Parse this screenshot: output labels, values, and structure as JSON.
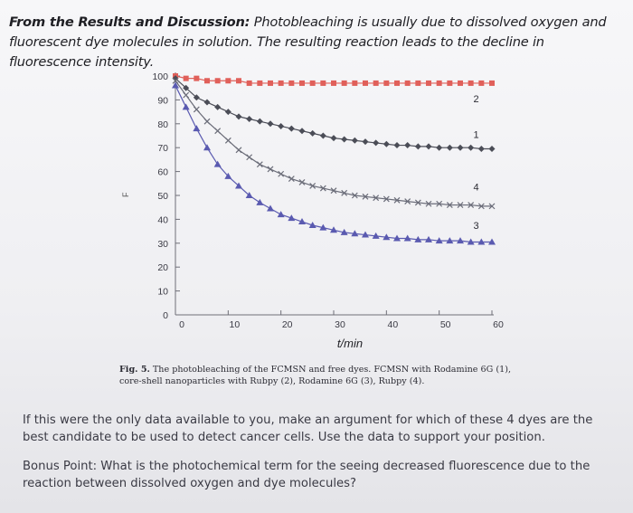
{
  "intro": {
    "lead": "From the Results and Discussion:",
    "text": " Photobleaching is usually due to dissolved oxygen and fluorescent dye molecules in solution. The resulting reaction leads to the decline in fluorescence intensity."
  },
  "chart_data": {
    "type": "line",
    "xlabel": "t/min",
    "ylabel": "",
    "xlim": [
      0,
      60
    ],
    "ylim": [
      0,
      100
    ],
    "x_ticks": [
      "0",
      "10",
      "20",
      "30",
      "40",
      "50",
      "60"
    ],
    "y_ticks": [
      "0",
      "10",
      "20",
      "30",
      "40",
      "50",
      "60",
      "70",
      "80",
      "90",
      "100"
    ],
    "grid": false,
    "series": [
      {
        "name": "2",
        "marker": "square",
        "color": "#e0605a",
        "x": [
          0,
          2,
          4,
          6,
          8,
          10,
          12,
          14,
          16,
          18,
          20,
          22,
          24,
          26,
          28,
          30,
          32,
          34,
          36,
          38,
          40,
          42,
          44,
          46,
          48,
          50,
          52,
          54,
          56,
          58,
          60
        ],
        "y": [
          100,
          99,
          99,
          98,
          98,
          98,
          98,
          97,
          97,
          97,
          97,
          97,
          97,
          97,
          97,
          97,
          97,
          97,
          97,
          97,
          97,
          97,
          97,
          97,
          97,
          97,
          97,
          97,
          97,
          97,
          97
        ]
      },
      {
        "name": "1",
        "marker": "diamond",
        "color": "#4b4d57",
        "x": [
          0,
          2,
          4,
          6,
          8,
          10,
          12,
          14,
          16,
          18,
          20,
          22,
          24,
          26,
          28,
          30,
          32,
          34,
          36,
          38,
          40,
          42,
          44,
          46,
          48,
          50,
          52,
          54,
          56,
          58,
          60
        ],
        "y": [
          99,
          95,
          91,
          89,
          87,
          85,
          83,
          82,
          81,
          80,
          79,
          78,
          77,
          76,
          75,
          74,
          73.5,
          73,
          72.5,
          72,
          71.5,
          71,
          71,
          70.5,
          70.5,
          70,
          70,
          70,
          70,
          69.5,
          69.5
        ]
      },
      {
        "name": "4",
        "marker": "x",
        "color": "#6a6c78",
        "x": [
          0,
          2,
          4,
          6,
          8,
          10,
          12,
          14,
          16,
          18,
          20,
          22,
          24,
          26,
          28,
          30,
          32,
          34,
          36,
          38,
          40,
          42,
          44,
          46,
          48,
          50,
          52,
          54,
          56,
          58,
          60
        ],
        "y": [
          98,
          92,
          86,
          81,
          77,
          73,
          69,
          66,
          63,
          61,
          59,
          57,
          55.5,
          54,
          53,
          52,
          51,
          50,
          49.5,
          49,
          48.5,
          48,
          47.5,
          47,
          46.5,
          46.5,
          46,
          46,
          46,
          45.5,
          45.5
        ]
      },
      {
        "name": "3",
        "marker": "triangle",
        "color": "#5a5ab0",
        "x": [
          0,
          2,
          4,
          6,
          8,
          10,
          12,
          14,
          16,
          18,
          20,
          22,
          24,
          26,
          28,
          30,
          32,
          34,
          36,
          38,
          40,
          42,
          44,
          46,
          48,
          50,
          52,
          54,
          56,
          58,
          60
        ],
        "y": [
          96,
          87,
          78,
          70,
          63,
          58,
          54,
          50,
          47,
          44.5,
          42,
          40.5,
          39,
          37.5,
          36.5,
          35.5,
          34.5,
          34,
          33.5,
          33,
          32.5,
          32,
          32,
          31.5,
          31.5,
          31,
          31,
          31,
          30.5,
          30.5,
          30.5
        ]
      }
    ],
    "annotations": [
      {
        "text": "2",
        "x": 57,
        "y": 89
      },
      {
        "text": "1",
        "x": 57,
        "y": 74
      },
      {
        "text": "4",
        "x": 57,
        "y": 52
      },
      {
        "text": "3",
        "x": 57,
        "y": 36
      }
    ]
  },
  "caption": {
    "lead": "Fig. 5.",
    "text": " The photobleaching of the FCMSN and free dyes. FCMSN with Rodamine 6G (1), core-shell nanoparticles with Rubpy (2), Rodamine 6G (3), Rubpy (4)."
  },
  "question": "If this were the only data available to you, make an argument for which of these 4 dyes are the best candidate to be used to detect cancer cells.  Use the data to support your position.",
  "bonus": "Bonus Point: What is the photochemical term for the seeing decreased fluorescence due to the reaction between dissolved oxygen and dye molecules?",
  "y_axis_marker": "F"
}
